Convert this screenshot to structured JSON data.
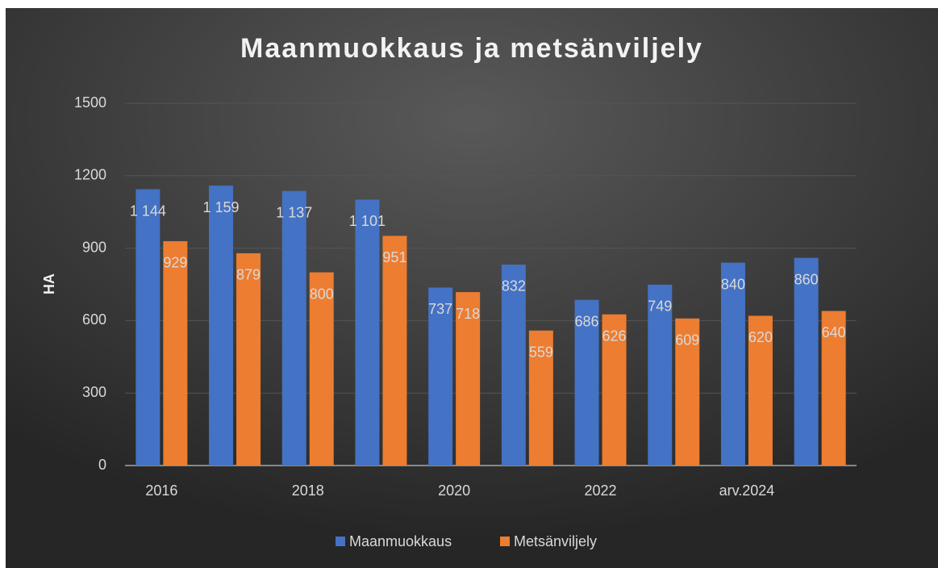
{
  "chart_data": {
    "type": "bar",
    "title": "Maanmuokkaus ja metsänviljely",
    "y_label": "HA",
    "categories": [
      "2016",
      null,
      "2018",
      null,
      "2020",
      null,
      "2022",
      null,
      "arv.2024",
      null
    ],
    "series": [
      {
        "name": "Maanmuokkaus",
        "color": "#4472c4",
        "values": [
          1144,
          1159,
          1137,
          1101,
          737,
          832,
          686,
          749,
          840,
          860
        ],
        "value_labels": [
          "1 144",
          "1 159",
          "1 137",
          "1 101",
          "737",
          "832",
          "686",
          "749",
          "840",
          "860"
        ]
      },
      {
        "name": "Metsänviljely",
        "color": "#ed7d31",
        "values": [
          929,
          879,
          800,
          951,
          718,
          559,
          626,
          609,
          620,
          640
        ]
      }
    ],
    "ylim": [
      0,
      1500
    ],
    "yticks": [
      0,
      300,
      600,
      900,
      1200,
      1500
    ],
    "grid": true,
    "legend": "bottom"
  }
}
